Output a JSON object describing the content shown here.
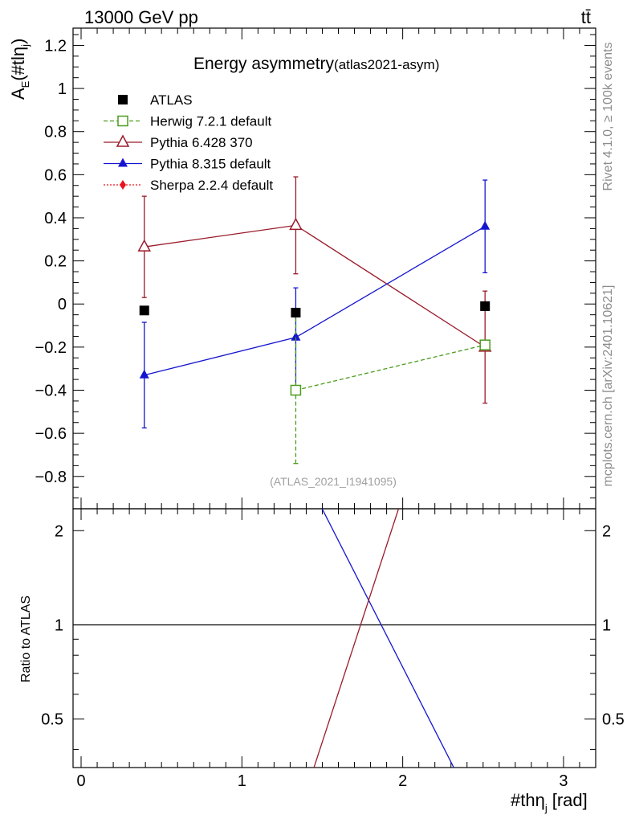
{
  "header": {
    "process": "13000 GeV pp",
    "final_state": "tt̄"
  },
  "side_labels": {
    "rivet": "Rivet 4.1.0, ≥ 100k events",
    "mcplots": "mcplots.cern.ch [arXiv:2401.10621]"
  },
  "chart_data": {
    "type": "scatter",
    "title_main": "Energy asymmetry",
    "title_sub": "(atlas2021-asym)",
    "analysis_id": "(ATLAS_2021_I1941095)",
    "xlabel": "#thη",
    "xlabel_sub": "j",
    "xlabel_unit": "[rad]",
    "ylabel": "A",
    "ylabel_sub": "E",
    "ylabel_paren": "(#tlη",
    "ylabel_paren_sub": "j",
    "ylabel_close": ")",
    "xlim": [
      -0.05,
      3.2
    ],
    "ylim": [
      -0.95,
      1.28
    ],
    "xticks": [
      "0",
      "1",
      "2",
      "3"
    ],
    "xtick_values": [
      0,
      1,
      2,
      3
    ],
    "yticks": [
      "−0.8",
      "−0.6",
      "−0.4",
      "−0.2",
      "0",
      "0.2",
      "0.4",
      "0.6",
      "0.8",
      "1",
      "1.2"
    ],
    "ytick_values": [
      -0.8,
      -0.6,
      -0.4,
      -0.2,
      0,
      0.2,
      0.4,
      0.6,
      0.8,
      1,
      1.2
    ],
    "series": [
      {
        "name": "ATLAS",
        "color": "#000000",
        "marker": "square-filled",
        "style": "points",
        "x": [
          0.393,
          1.335,
          2.512
        ],
        "y": [
          -0.03,
          -0.04,
          -0.01
        ],
        "err": [
          0,
          0,
          0
        ]
      },
      {
        "name": "Herwig 7.2.1 default",
        "color": "#4b9b1e",
        "marker": "square-open",
        "style": "dashed",
        "x": [
          1.335,
          2.512
        ],
        "y": [
          -0.4,
          -0.19
        ],
        "err": [
          0.34,
          0
        ]
      },
      {
        "name": "Pythia 6.428 370",
        "color": "#9a1a2a",
        "marker": "triangle-open",
        "style": "solid",
        "x": [
          0.393,
          1.335,
          2.512
        ],
        "y": [
          0.265,
          0.365,
          -0.2
        ],
        "err": [
          0.235,
          0.225,
          0.26
        ]
      },
      {
        "name": "Pythia 8.315 default",
        "color": "#1515d0",
        "marker": "triangle-filled",
        "style": "solid",
        "x": [
          0.393,
          1.335,
          2.512
        ],
        "y": [
          -0.33,
          -0.155,
          0.36
        ],
        "err": [
          0.245,
          0.23,
          0.215
        ]
      },
      {
        "name": "Sherpa 2.2.4 default",
        "color": "#e8141e",
        "marker": "diamond-filled",
        "style": "dotted",
        "x": [],
        "y": [],
        "err": []
      }
    ],
    "ratio": {
      "ylabel": "Ratio to ATLAS",
      "yticks": [
        "0.5",
        "1",
        "2"
      ],
      "ytick_values": [
        0.5,
        1,
        2
      ],
      "ylim": [
        0.35,
        2.35
      ],
      "scale": "log",
      "lines": [
        {
          "name": "Pythia 8.315 default ratio",
          "color": "#1515d0",
          "x": [
            1.49,
            2.33
          ],
          "y": [
            2.4,
            0.34
          ]
        },
        {
          "name": "Pythia 6.428 370 ratio",
          "color": "#9a1a2a",
          "x": [
            1.44,
            1.98
          ],
          "y": [
            0.34,
            2.4
          ]
        }
      ]
    }
  }
}
